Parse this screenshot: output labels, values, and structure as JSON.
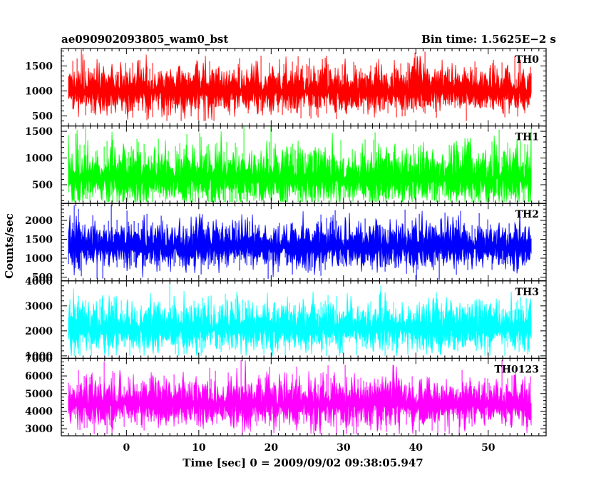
{
  "chart_data": {
    "type": "line",
    "title_left": "ae090902093805_wam0_bst",
    "title_right": "Bin time: 1.5625E−2 s",
    "xlabel": "Time [sec] 0 = 2009/09/02 09:38:05.947",
    "ylabel": "Counts/sec",
    "xlim": [
      -9,
      58
    ],
    "xticks": [
      0,
      10,
      20,
      30,
      40,
      50
    ],
    "data_x_range": [
      -8,
      56
    ],
    "grid": false,
    "panels": [
      {
        "name": "TH0",
        "color": "#ff0000",
        "ylim": [
          300,
          1850
        ],
        "yticks": [
          500,
          1000,
          1500
        ],
        "baseline": 300,
        "mean": 1000,
        "low_min": 400,
        "high_max": 1850
      },
      {
        "name": "TH1",
        "color": "#00ff00",
        "ylim": [
          150,
          1600
        ],
        "yticks": [
          500,
          1000,
          1500
        ],
        "baseline": 150,
        "mean": 620,
        "low_min": 180,
        "high_max": 1600
      },
      {
        "name": "TH2",
        "color": "#0000ff",
        "ylim": [
          400,
          2450
        ],
        "yticks": [
          500,
          1000,
          1500,
          2000
        ],
        "baseline": 400,
        "mean": 1300,
        "low_min": 420,
        "high_max": 2400
      },
      {
        "name": "TH3",
        "color": "#00ffff",
        "ylim": [
          900,
          4000
        ],
        "yticks": [
          1000,
          2000,
          3000,
          4000
        ],
        "baseline": 900,
        "mean": 2100,
        "low_min": 1000,
        "high_max": 3900
      },
      {
        "name": "TH0123",
        "color": "#ff00ff",
        "ylim": [
          2600,
          7000
        ],
        "yticks": [
          3000,
          4000,
          5000,
          6000,
          7000
        ],
        "baseline": 2600,
        "mean": 4400,
        "low_min": 2700,
        "high_max": 6900
      }
    ]
  }
}
